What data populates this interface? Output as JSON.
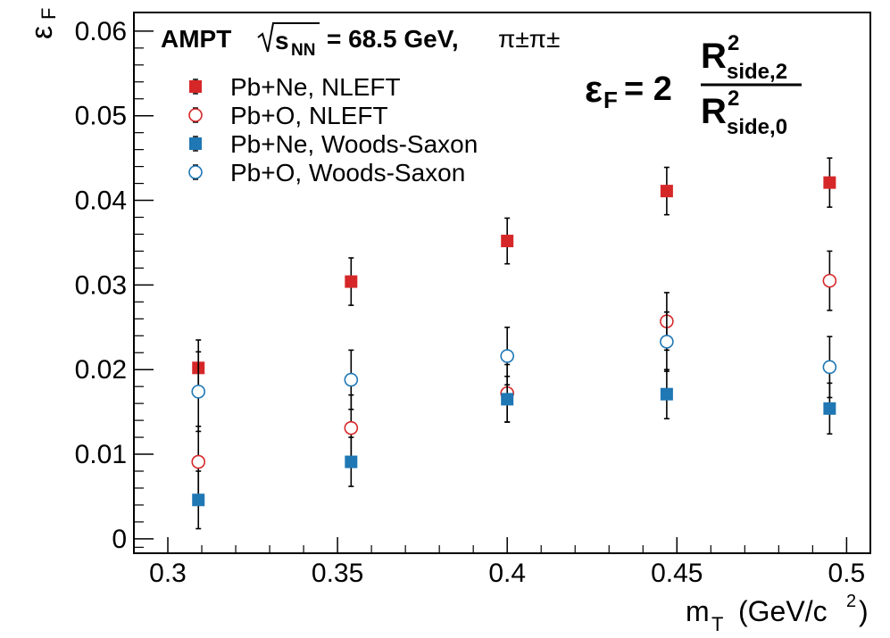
{
  "chart_data": {
    "type": "scatter",
    "title": "AMPT",
    "energy_label": "s",
    "energy_subscript": "NN",
    "energy_value": "= 68.5 GeV,",
    "particle_label": "π±π±",
    "formula": {
      "lhs_symbol": "ε",
      "lhs_subscript": "F",
      "lhs_eq": "= 2",
      "numerator": "R",
      "numerator_sup": "2",
      "numerator_sub": "side,2",
      "denominator": "R",
      "denominator_sup": "2",
      "denominator_sub": "side,0"
    },
    "xlabel": "m",
    "xlabel_sub": "T",
    "xlabel_unit": "(GeV/c",
    "xlabel_unit_sup": "2",
    "xlabel_unit_end": ")",
    "ylabel": "ε",
    "ylabel_sub": "F",
    "xlim": [
      0.29,
      0.507
    ],
    "ylim": [
      -0.0017,
      0.0622
    ],
    "x_ticks": [
      "0.3",
      "0.35",
      "0.4",
      "0.45",
      "0.5"
    ],
    "y_ticks": [
      "0",
      "0.01",
      "0.02",
      "0.03",
      "0.04",
      "0.05",
      "0.06"
    ],
    "legend_position": "top-left",
    "series": [
      {
        "name": "Pb+Ne, NLEFT",
        "color": "#d62728",
        "marker": "filled-square",
        "x": [
          0.309,
          0.354,
          0.4,
          0.447,
          0.495
        ],
        "y": [
          0.0202,
          0.0304,
          0.0352,
          0.0411,
          0.0421
        ],
        "err": [
          0.0033,
          0.0028,
          0.0027,
          0.0028,
          0.0029
        ]
      },
      {
        "name": "Pb+O, NLEFT",
        "color": "#d62728",
        "marker": "open-circle",
        "x": [
          0.309,
          0.354,
          0.4,
          0.447,
          0.495
        ],
        "y": [
          0.0091,
          0.0131,
          0.0172,
          0.0257,
          0.0305
        ],
        "err": [
          0.0042,
          0.0039,
          0.0034,
          0.0034,
          0.0035
        ]
      },
      {
        "name": "Pb+Ne, Woods-Saxon",
        "color": "#1f77b4",
        "marker": "filled-square",
        "x": [
          0.309,
          0.354,
          0.4,
          0.447,
          0.495
        ],
        "y": [
          0.0046,
          0.0091,
          0.0165,
          0.0171,
          0.0154
        ],
        "err": [
          0.0034,
          0.0029,
          0.0027,
          0.0029,
          0.003
        ]
      },
      {
        "name": "Pb+O, Woods-Saxon",
        "color": "#1f77b4",
        "marker": "open-circle",
        "x": [
          0.309,
          0.354,
          0.4,
          0.447,
          0.495
        ],
        "y": [
          0.0174,
          0.0188,
          0.0216,
          0.0233,
          0.0203
        ],
        "err": [
          0.0047,
          0.0035,
          0.0034,
          0.0035,
          0.0036
        ]
      }
    ]
  }
}
